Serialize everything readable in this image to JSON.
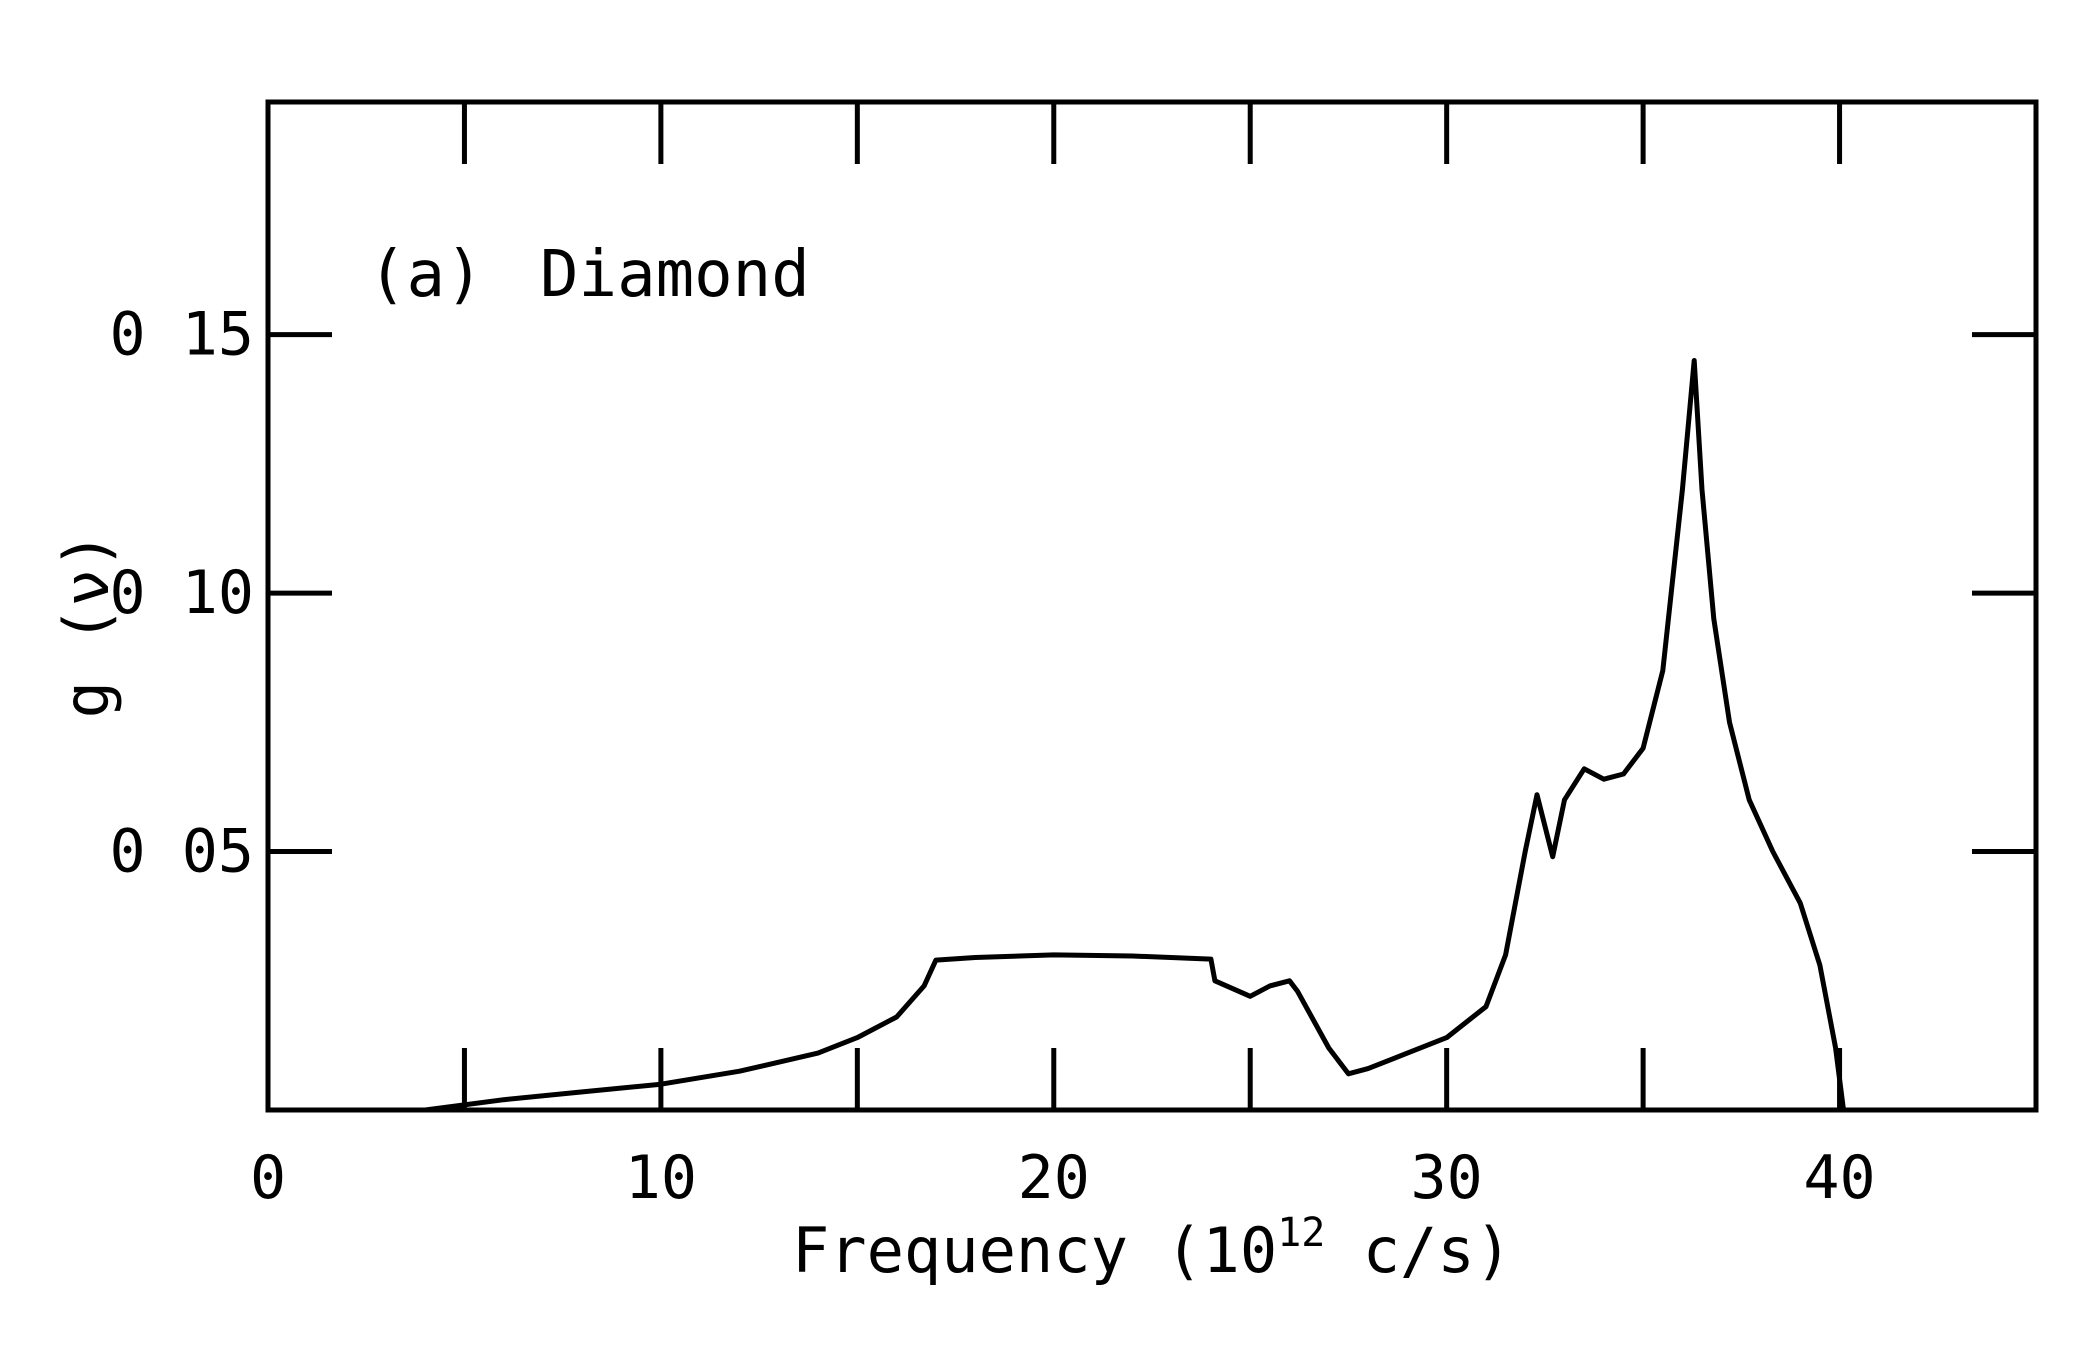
{
  "chart_data": {
    "type": "line",
    "title": "",
    "panel_label": "(a)",
    "panel_title": "Diamond",
    "xlabel": {
      "prefix": "Frequency (10",
      "superscript": "12",
      "suffix": " c/s)"
    },
    "ylabel": "g (ν)",
    "xlim": [
      0,
      45
    ],
    "ylim": [
      0,
      0.195
    ],
    "x_ticks": [
      0,
      10,
      20,
      30,
      40
    ],
    "x_tick_labels": [
      "0",
      "10",
      "20",
      "30",
      "40"
    ],
    "x_minor_ticks": [
      5,
      15,
      25,
      35
    ],
    "y_ticks": [
      0.05,
      0.1,
      0.15
    ],
    "y_tick_labels": [
      "0 05",
      "0 10",
      "0 15"
    ],
    "grid": false,
    "series": [
      {
        "x": [
          4,
          6,
          8,
          10,
          12,
          14,
          15,
          16,
          16.7,
          17,
          18,
          20,
          22,
          24,
          24.1,
          25,
          25.5,
          26,
          26.2,
          27,
          27.5,
          28,
          29,
          30,
          31,
          31.5,
          32,
          32.3,
          32.7,
          33,
          33.5,
          34,
          34.5,
          35,
          35.5,
          36,
          36.3,
          36.5,
          36.8,
          37.2,
          37.7,
          38.3,
          39,
          39.5,
          39.9,
          40.1
        ],
        "y": [
          0.0,
          0.002,
          0.0035,
          0.005,
          0.0075,
          0.011,
          0.014,
          0.018,
          0.024,
          0.029,
          0.0295,
          0.03,
          0.0298,
          0.0292,
          0.025,
          0.022,
          0.024,
          0.025,
          0.023,
          0.012,
          0.007,
          0.008,
          0.011,
          0.014,
          0.02,
          0.03,
          0.05,
          0.061,
          0.049,
          0.06,
          0.066,
          0.064,
          0.065,
          0.07,
          0.085,
          0.12,
          0.145,
          0.12,
          0.095,
          0.075,
          0.06,
          0.05,
          0.04,
          0.028,
          0.012,
          0.0
        ]
      }
    ]
  }
}
